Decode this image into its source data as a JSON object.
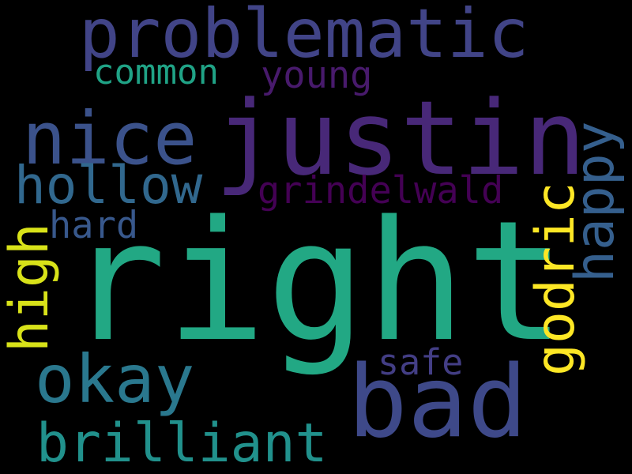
{
  "words": [
    {
      "key": "right",
      "text": "right",
      "color": "#22a884"
    },
    {
      "key": "justin",
      "text": "justin",
      "color": "#482878"
    },
    {
      "key": "problematic",
      "text": "problematic",
      "color": "#414487"
    },
    {
      "key": "bad",
      "text": "bad",
      "color": "#3e4989"
    },
    {
      "key": "nice",
      "text": "nice",
      "color": "#3b528b"
    },
    {
      "key": "okay",
      "text": "okay",
      "color": "#2a788e"
    },
    {
      "key": "brilliant",
      "text": "brilliant",
      "color": "#21918c"
    },
    {
      "key": "hollow",
      "text": "hollow",
      "color": "#31688e"
    },
    {
      "key": "happy",
      "text": "happy",
      "color": "#355f8d"
    },
    {
      "key": "godric",
      "text": "godric",
      "color": "#fde725"
    },
    {
      "key": "high",
      "text": "high",
      "color": "#d8e219"
    },
    {
      "key": "grindelwald",
      "text": "grindelwald",
      "color": "#440154"
    },
    {
      "key": "common",
      "text": "common",
      "color": "#20a386"
    },
    {
      "key": "young",
      "text": "young",
      "color": "#481a6c"
    },
    {
      "key": "hard",
      "text": "hard",
      "color": "#38588c"
    },
    {
      "key": "safe",
      "text": "safe",
      "color": "#433e85"
    }
  ]
}
